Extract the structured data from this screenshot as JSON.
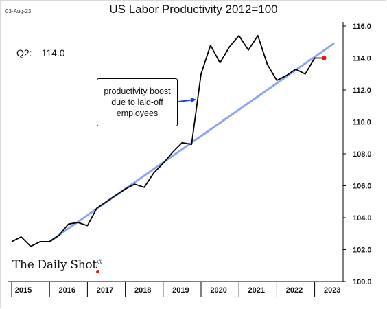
{
  "header": {
    "date_stamp": "03-Aug-23",
    "title": "US Labor Productivity 2012=100"
  },
  "latest": {
    "label": "Q2:",
    "value": "114.0"
  },
  "annotation": {
    "text": "productivity boost due to laid-off employees"
  },
  "brand": {
    "name": "The Daily Shot",
    "mark": "®"
  },
  "colors": {
    "series": "#000000",
    "trend": "#8ea6ef",
    "last_point": "#e8131b",
    "arrow": "#1f3fd6"
  },
  "chart_data": {
    "type": "line",
    "title": "US Labor Productivity 2012=100",
    "xlabel": "",
    "ylabel": "",
    "ylim": [
      100.0,
      116.0
    ],
    "y_ticks": [
      "100.0",
      "102.0",
      "104.0",
      "106.0",
      "108.0",
      "110.0",
      "112.0",
      "114.0",
      "116.0"
    ],
    "x_ticks": [
      "2015",
      "2016",
      "2017",
      "2018",
      "2019",
      "2020",
      "2021",
      "2022",
      "2023"
    ],
    "xlim": [
      2015.0,
      2023.75
    ],
    "grid": false,
    "series": [
      {
        "type": "line",
        "x": [
          2015.0,
          2015.25,
          2015.5,
          2015.75,
          2016.0,
          2016.25,
          2016.5,
          2016.75,
          2017.0,
          2017.25,
          2017.5,
          2017.75,
          2018.0,
          2018.25,
          2018.5,
          2018.75,
          2019.0,
          2019.25,
          2019.5,
          2019.75,
          2020.0,
          2020.25,
          2020.5,
          2020.75,
          2021.0,
          2021.25,
          2021.5,
          2021.75,
          2022.0,
          2022.25,
          2022.5,
          2022.75,
          2023.0,
          2023.25
        ],
        "values": [
          102.5,
          102.8,
          102.2,
          102.5,
          102.5,
          102.9,
          103.6,
          103.7,
          103.5,
          104.6,
          105.0,
          105.4,
          105.8,
          106.1,
          105.9,
          106.8,
          107.4,
          108.1,
          108.7,
          108.6,
          113.0,
          114.8,
          113.7,
          114.7,
          115.4,
          114.5,
          115.4,
          113.6,
          112.6,
          112.9,
          113.3,
          113.0,
          114.0,
          114.0
        ]
      },
      {
        "type": "trend",
        "x": [
          2016.0,
          2023.5
        ],
        "values": [
          102.5,
          114.9
        ]
      }
    ],
    "last_point": {
      "x": 2023.25,
      "value": 114.0
    }
  }
}
